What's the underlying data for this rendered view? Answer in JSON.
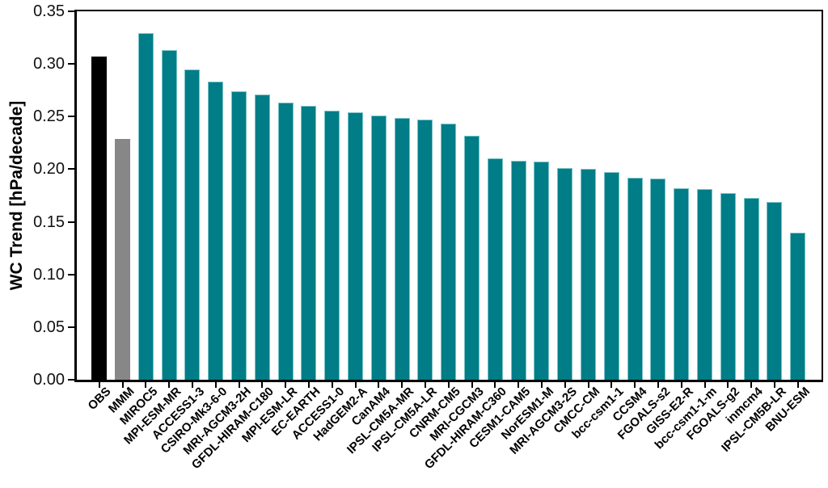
{
  "figure": {
    "background_color": "#ffffff",
    "frame_color": "#000000"
  },
  "chart_data": {
    "type": "bar",
    "title": "",
    "xlabel": "",
    "ylabel": "WC Trend [hPa/decade]",
    "ylim": [
      0,
      0.35
    ],
    "ytick_labels": [
      "0.00",
      "0.05",
      "0.10",
      "0.15",
      "0.20",
      "0.25",
      "0.30",
      "0.35"
    ],
    "grid": false,
    "legend": "none",
    "x_tick_label_rotation_deg": 45,
    "categories": [
      "OBS",
      "MMM",
      "MIROC5",
      "MPI-ESM-MR",
      "ACCESS1-3",
      "CSIRO-Mk3-6-0",
      "MRI-AGCM3-2H",
      "GFDL-HIRAM-C180",
      "MPI-ESM-LR",
      "EC-EARTH",
      "ACCESS1-0",
      "HadGEM2-A",
      "CanAM4",
      "IPSL-CM5A-MR",
      "IPSL-CM5A-LR",
      "CNRM-CM5",
      "MRI-CGCM3",
      "GFDL-HIRAM-C360",
      "CESM1-CAM5",
      "NorESM1-M",
      "MRI-AGCM3-2S",
      "CMCC-CM",
      "bcc-csm1-1",
      "CCSM4",
      "FGOALS-s2",
      "GISS-E2-R",
      "bcc-csm1-1-m",
      "FGOALS-g2",
      "inmcm4",
      "IPSL-CM5B-LR",
      "BNU-ESM"
    ],
    "values": [
      0.307,
      0.229,
      0.329,
      0.313,
      0.295,
      0.283,
      0.274,
      0.271,
      0.263,
      0.26,
      0.256,
      0.254,
      0.251,
      0.249,
      0.247,
      0.243,
      0.232,
      0.21,
      0.208,
      0.207,
      0.201,
      0.2,
      0.197,
      0.192,
      0.191,
      0.182,
      0.181,
      0.177,
      0.173,
      0.169,
      0.14
    ],
    "special_bar_colors": {
      "OBS": "#000000",
      "MMM": "#878787"
    },
    "default_bar_color": "#007d87",
    "bar_edge_color": "#79c2c7"
  }
}
